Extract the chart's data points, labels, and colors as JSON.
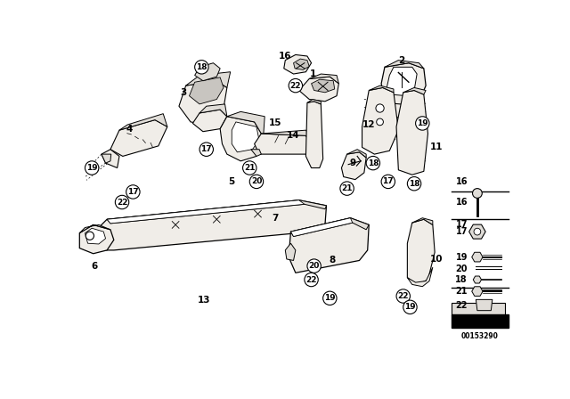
{
  "bg_color": "#ffffff",
  "diagram_number": "00153290",
  "line_color": "#000000",
  "fill_light": "#f0ede8",
  "fill_mid": "#e0ddd8",
  "fill_dark": "#c8c5c0"
}
